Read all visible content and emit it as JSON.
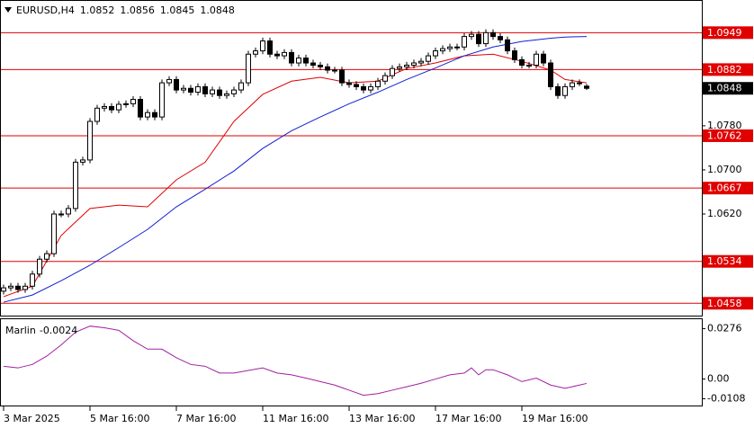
{
  "chart_data": [
    {
      "type": "candlestick",
      "title": "EURUSD,H4",
      "categories": [
        "3 Mar 2025",
        null,
        null,
        null,
        null,
        null,
        null,
        null,
        null,
        null,
        null,
        null,
        "5 Mar 16:00",
        null,
        null,
        null,
        null,
        null,
        null,
        null,
        null,
        null,
        null,
        null,
        "7 Mar 16:00",
        null,
        null,
        null,
        null,
        null,
        null,
        null,
        null,
        null,
        null,
        null,
        "11 Mar 16:00",
        null,
        null,
        null,
        null,
        null,
        null,
        null,
        null,
        null,
        null,
        null,
        "13 Mar 16:00",
        null,
        null,
        null,
        null,
        null,
        null,
        null,
        null,
        null,
        null,
        null,
        "17 Mar 16:00",
        null,
        null,
        null,
        null,
        null,
        null,
        null,
        null,
        null,
        null,
        null,
        "19 Mar 16:00",
        null,
        null,
        null,
        null,
        null,
        null,
        null,
        null,
        null
      ],
      "open": [
        1.048,
        1.0486,
        1.0489,
        1.0483,
        1.0489,
        1.0511,
        1.0538,
        1.0548,
        1.062,
        1.062,
        1.063,
        1.0714,
        1.0718,
        1.0788,
        1.0812,
        1.0815,
        1.0809,
        1.0819,
        1.082,
        1.0828,
        1.0796,
        1.0804,
        1.0796,
        1.0858,
        1.0864,
        1.0845,
        1.0848,
        1.0841,
        1.0851,
        1.0838,
        1.0845,
        1.0835,
        1.0838,
        1.0845,
        1.0858,
        1.091,
        1.0916,
        1.0934,
        1.091,
        1.0907,
        1.0913,
        1.0894,
        1.0903,
        1.0894,
        1.089,
        1.0887,
        1.0881,
        1.0881,
        1.0858,
        1.0855,
        1.0851,
        1.0845,
        1.0851,
        1.0861,
        1.0871,
        1.0884,
        1.0887,
        1.089,
        1.0894,
        1.0897,
        1.0907,
        1.0916,
        1.092,
        1.0923,
        1.0923,
        1.0942,
        1.0946,
        1.0929,
        1.0949,
        1.0942,
        1.0936,
        1.0916,
        1.09,
        1.089,
        1.089,
        1.091,
        1.0894,
        1.0851,
        1.0835,
        1.0851,
        1.0858,
        1.0852
      ],
      "high": [
        1.0492,
        1.0495,
        1.0495,
        1.0495,
        1.0517,
        1.0544,
        1.0554,
        1.0626,
        1.0626,
        1.0636,
        1.072,
        1.0724,
        1.0794,
        1.0818,
        1.0821,
        1.0821,
        1.0825,
        1.0826,
        1.0834,
        1.0834,
        1.081,
        1.081,
        1.0864,
        1.087,
        1.087,
        1.0854,
        1.0854,
        1.0857,
        1.0857,
        1.0851,
        1.0851,
        1.0844,
        1.0851,
        1.0864,
        1.0916,
        1.0922,
        1.094,
        1.094,
        1.0916,
        1.0919,
        1.0919,
        1.0909,
        1.0909,
        1.09,
        1.0896,
        1.0893,
        1.0887,
        1.0887,
        1.0864,
        1.0861,
        1.0857,
        1.0857,
        1.0867,
        1.0877,
        1.089,
        1.0893,
        1.0896,
        1.09,
        1.0903,
        1.0913,
        1.0922,
        1.0926,
        1.0929,
        1.0929,
        1.0948,
        1.0952,
        1.0952,
        1.0955,
        1.0955,
        1.0948,
        1.0942,
        1.0922,
        1.0906,
        1.0896,
        1.0916,
        1.0916,
        1.09,
        1.0857,
        1.0857,
        1.0864,
        1.0864,
        1.0856
      ],
      "low": [
        1.0474,
        1.048,
        1.0477,
        1.0477,
        1.0483,
        1.0505,
        1.0532,
        1.0542,
        1.0614,
        1.0614,
        1.0624,
        1.0708,
        1.0712,
        1.0782,
        1.0806,
        1.0803,
        1.0803,
        1.0813,
        1.0814,
        1.079,
        1.079,
        1.079,
        1.079,
        1.0852,
        1.0839,
        1.0839,
        1.0835,
        1.0835,
        1.0832,
        1.0832,
        1.0829,
        1.0829,
        1.0832,
        1.0839,
        1.0852,
        1.0904,
        1.091,
        1.0904,
        1.0901,
        1.0901,
        1.0888,
        1.0888,
        1.0888,
        1.0884,
        1.0881,
        1.0875,
        1.0875,
        1.0852,
        1.0849,
        1.0845,
        1.0839,
        1.0839,
        1.0845,
        1.0855,
        1.0865,
        1.0878,
        1.0881,
        1.0884,
        1.0888,
        1.0891,
        1.0901,
        1.091,
        1.0914,
        1.0917,
        1.0917,
        1.0936,
        1.0923,
        1.0923,
        1.0936,
        1.093,
        1.091,
        1.0894,
        1.0884,
        1.0884,
        1.0884,
        1.0888,
        1.0845,
        1.0829,
        1.0829,
        1.0845,
        1.0852,
        1.0845
      ],
      "close": [
        1.0486,
        1.0489,
        1.0483,
        1.0489,
        1.0511,
        1.0538,
        1.0548,
        1.062,
        1.062,
        1.063,
        1.0714,
        1.0718,
        1.0788,
        1.0812,
        1.0815,
        1.0809,
        1.0819,
        1.082,
        1.0828,
        1.0796,
        1.0804,
        1.0796,
        1.0858,
        1.0864,
        1.0845,
        1.0848,
        1.0841,
        1.0851,
        1.0838,
        1.0845,
        1.0835,
        1.0838,
        1.0845,
        1.0858,
        1.091,
        1.0916,
        1.0934,
        1.091,
        1.0907,
        1.0913,
        1.0894,
        1.0903,
        1.0894,
        1.089,
        1.0887,
        1.0881,
        1.0881,
        1.0858,
        1.0855,
        1.0851,
        1.0845,
        1.0851,
        1.0861,
        1.0871,
        1.0884,
        1.0887,
        1.089,
        1.0894,
        1.0897,
        1.0907,
        1.0916,
        1.092,
        1.0923,
        1.0923,
        1.0942,
        1.0946,
        1.0929,
        1.0949,
        1.0942,
        1.0936,
        1.0916,
        1.09,
        1.089,
        1.089,
        1.091,
        1.0894,
        1.0851,
        1.0835,
        1.0851,
        1.0858,
        1.0858,
        1.0848
      ],
      "series": [
        {
          "color": "#e00000",
          "x": [
            0,
            4,
            8,
            12,
            16,
            20,
            24,
            28,
            32,
            36,
            40,
            44,
            48,
            52,
            56,
            60,
            64,
            68,
            72,
            76,
            78,
            81
          ],
          "values": [
            1.047,
            1.0489,
            1.0581,
            1.063,
            1.0636,
            1.0633,
            1.0682,
            1.0714,
            1.0788,
            1.0837,
            1.0861,
            1.0868,
            1.0858,
            1.0861,
            1.0884,
            1.0894,
            1.0907,
            1.091,
            1.0897,
            1.0881,
            1.0864,
            1.0858
          ]
        },
        {
          "color": "#1020d0",
          "x": [
            0,
            4,
            8,
            12,
            16,
            20,
            24,
            28,
            32,
            36,
            40,
            44,
            48,
            52,
            56,
            60,
            64,
            68,
            72,
            76,
            78,
            81
          ],
          "values": [
            1.046,
            1.0473,
            1.0499,
            1.0527,
            1.0559,
            1.0592,
            1.0633,
            1.0665,
            1.0698,
            1.0739,
            1.0771,
            1.0796,
            1.082,
            1.0841,
            1.0864,
            1.0885,
            1.0907,
            1.0923,
            1.0933,
            1.0939,
            1.0941,
            1.0942
          ]
        }
      ],
      "levels": [
        1.0949,
        1.0882,
        1.0762,
        1.0667,
        1.0534,
        1.0458
      ],
      "level_color": "#e00000",
      "ylim": [
        1.0434,
        1.1005
      ],
      "yticks": [
        {
          "value": 1.062,
          "label": "1.0620"
        },
        {
          "value": 1.07,
          "label": "1.0700"
        },
        {
          "value": 1.078,
          "label": "1.0780"
        }
      ]
    },
    {
      "type": "line",
      "name": "Marlin",
      "color": "#a020a0",
      "x": [
        0,
        2,
        4,
        6,
        8,
        10,
        12,
        14,
        16,
        18,
        20,
        22,
        24,
        26,
        28,
        30,
        32,
        34,
        36,
        38,
        40,
        42,
        44,
        46,
        48,
        50,
        52,
        54,
        56,
        58,
        60,
        62,
        64,
        65,
        66,
        67,
        68,
        70,
        72,
        74,
        76,
        78,
        80,
        81
      ],
      "values": [
        0.007,
        0.0061,
        0.008,
        0.0126,
        0.0187,
        0.0257,
        0.029,
        0.0281,
        0.0267,
        0.021,
        0.0164,
        0.0164,
        0.0117,
        0.008,
        0.007,
        0.0033,
        0.0033,
        0.0047,
        0.0061,
        0.0033,
        0.0023,
        0.0005,
        -0.0014,
        -0.0033,
        -0.0061,
        -0.0089,
        -0.008,
        -0.0061,
        -0.0042,
        -0.0023,
        0,
        0.0023,
        0.0033,
        0.0061,
        0.0023,
        0.0051,
        0.0051,
        0.0023,
        -0.0014,
        0.0005,
        -0.0033,
        -0.0051,
        -0.0033,
        -0.0024
      ],
      "ylim": [
        -0.015,
        0.0323
      ],
      "yticks": [
        0.0276,
        {
          "value": 0,
          "label": "0.00"
        },
        -0.0108
      ]
    }
  ]
}
